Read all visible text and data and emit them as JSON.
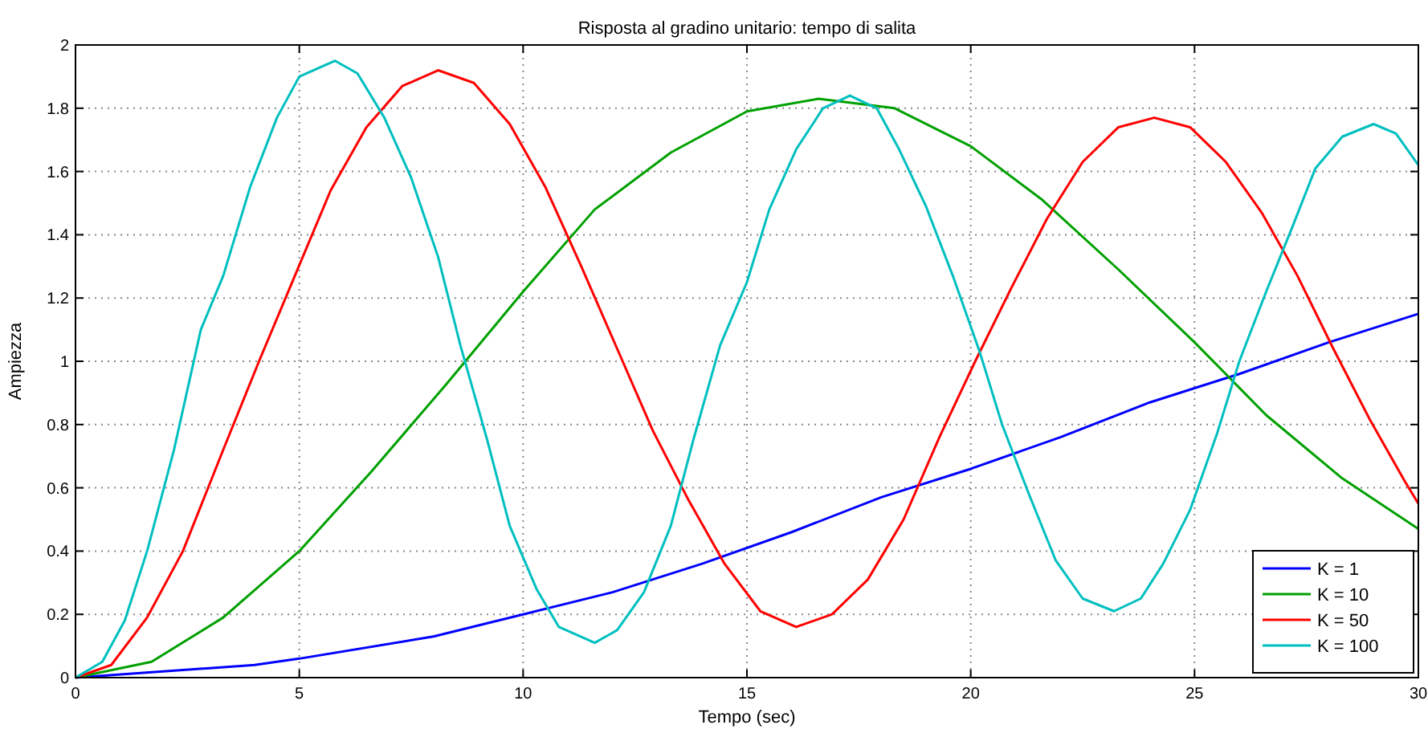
{
  "chart_data": {
    "type": "line",
    "title": "Risposta al gradino unitario: tempo di salita",
    "xlabel": "Tempo (sec)",
    "ylabel": "Ampiezza",
    "xlim": [
      0,
      30
    ],
    "xticks": [
      0,
      5,
      10,
      15,
      20,
      25,
      30
    ],
    "ylim": [
      0,
      2
    ],
    "yticks": [
      0,
      0.2,
      0.4,
      0.6,
      0.8,
      1,
      1.2,
      1.4,
      1.6,
      1.8,
      2
    ],
    "grid": true,
    "legend": "bottom right",
    "line_style": "solid",
    "series": [
      {
        "name": "K = 1",
        "color": "#0000ff",
        "x": [
          0,
          4,
          5,
          8,
          10,
          12,
          14,
          16,
          18,
          20,
          22,
          24,
          26,
          28,
          30
        ],
        "values": [
          0,
          0.04,
          0.06,
          0.13,
          0.2,
          0.27,
          0.36,
          0.46,
          0.57,
          0.66,
          0.76,
          0.87,
          0.96,
          1.06,
          1.15
        ]
      },
      {
        "name": "K = 10",
        "color": "#00a000",
        "x": [
          0,
          1.7,
          3.3,
          5,
          6.6,
          8.3,
          10,
          11.6,
          13.3,
          15,
          16.6,
          18.3,
          20,
          21.6,
          23.3,
          25,
          26.6,
          28.3,
          30
        ],
        "values": [
          0,
          0.05,
          0.19,
          0.4,
          0.65,
          0.93,
          1.22,
          1.48,
          1.66,
          1.79,
          1.83,
          1.8,
          1.68,
          1.51,
          1.29,
          1.06,
          0.83,
          0.63,
          0.47
        ]
      },
      {
        "name": "K = 50",
        "color": "#ff0000",
        "x": [
          0,
          0.8,
          1.6,
          2.4,
          3.3,
          4.1,
          4.9,
          5.7,
          6.5,
          7.3,
          8.1,
          8.9,
          9.7,
          10.5,
          11.3,
          12.1,
          12.9,
          13.7,
          14.5,
          15.3,
          16.1,
          16.9,
          17.7,
          18.5,
          19.3,
          20.1,
          20.9,
          21.7,
          22.5,
          23.3,
          24.1,
          24.9,
          25.7,
          26.5,
          27.3,
          28.1,
          28.9,
          29.7,
          30
        ],
        "values": [
          0,
          0.04,
          0.19,
          0.4,
          0.72,
          1,
          1.27,
          1.54,
          1.74,
          1.87,
          1.92,
          1.88,
          1.75,
          1.55,
          1.3,
          1.04,
          0.78,
          0.56,
          0.36,
          0.21,
          0.16,
          0.2,
          0.31,
          0.5,
          0.76,
          1,
          1.23,
          1.45,
          1.63,
          1.74,
          1.77,
          1.74,
          1.63,
          1.47,
          1.27,
          1.04,
          0.82,
          0.62,
          0.55
        ]
      },
      {
        "name": "K = 100",
        "color": "#00bfbf",
        "x": [
          0,
          0.6,
          1.1,
          1.6,
          2.2,
          2.8,
          3.3,
          3.9,
          4.5,
          5,
          5.8,
          6.3,
          6.9,
          7.5,
          8.1,
          8.6,
          9.2,
          9.7,
          10.3,
          10.8,
          11.6,
          12.1,
          12.7,
          13.3,
          13.8,
          14.4,
          15,
          15.5,
          16.1,
          16.7,
          17.3,
          17.9,
          18.4,
          19,
          19.6,
          20.2,
          20.7,
          21.3,
          21.9,
          22.5,
          23.2,
          23.8,
          24.3,
          24.9,
          25.5,
          26,
          26.6,
          27.2,
          27.7,
          28.3,
          29,
          29.5,
          30
        ],
        "values": [
          0,
          0.05,
          0.18,
          0.4,
          0.72,
          1.1,
          1.27,
          1.55,
          1.77,
          1.9,
          1.95,
          1.91,
          1.77,
          1.58,
          1.33,
          1.05,
          0.75,
          0.48,
          0.28,
          0.16,
          0.11,
          0.15,
          0.27,
          0.48,
          0.75,
          1.05,
          1.25,
          1.48,
          1.67,
          1.8,
          1.84,
          1.8,
          1.67,
          1.49,
          1.27,
          1.03,
          0.8,
          0.58,
          0.37,
          0.25,
          0.21,
          0.25,
          0.36,
          0.53,
          0.77,
          1,
          1.22,
          1.43,
          1.61,
          1.71,
          1.75,
          1.72,
          1.62
        ]
      }
    ]
  }
}
